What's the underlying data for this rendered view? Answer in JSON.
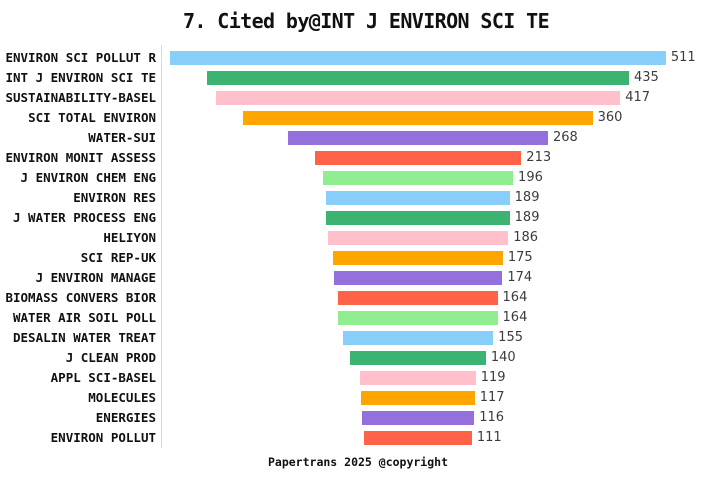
{
  "title": "7. Cited by@INT J ENVIRON SCI TE",
  "footer": "Papertrans 2025 @copyright",
  "chart_data": {
    "type": "bar",
    "subtype": "horizontal-centered-funnel",
    "title": "7. Cited by@INT J ENVIRON SCI TE",
    "xlabel": "",
    "ylabel": "",
    "xlim": [
      0,
      511
    ],
    "grid": false,
    "legend": false,
    "value_labels_shown": true,
    "categories": [
      "ENVIRON SCI POLLUT R",
      "INT J ENVIRON SCI TE",
      "SUSTAINABILITY-BASEL",
      "SCI TOTAL ENVIRON",
      "WATER-SUI",
      "ENVIRON MONIT ASSESS",
      "J ENVIRON CHEM ENG",
      "ENVIRON RES",
      "J WATER PROCESS ENG",
      "HELIYON",
      "SCI REP-UK",
      "J ENVIRON MANAGE",
      "BIOMASS CONVERS BIOR",
      "WATER AIR SOIL POLL",
      "DESALIN WATER TREAT",
      "J CLEAN PROD",
      "APPL SCI-BASEL",
      "MOLECULES",
      "ENERGIES",
      "ENVIRON POLLUT"
    ],
    "values": [
      511,
      435,
      417,
      360,
      268,
      213,
      196,
      189,
      189,
      186,
      175,
      174,
      164,
      164,
      155,
      140,
      119,
      117,
      116,
      111
    ],
    "bar_colors": [
      "#87CEFA",
      "#3CB371",
      "#FFC0CB",
      "#FFA500",
      "#9370DB",
      "#FF6347",
      "#90EE90",
      "#87CEFA",
      "#3CB371",
      "#FFC0CB",
      "#FFA500",
      "#9370DB",
      "#FF6347",
      "#90EE90",
      "#87CEFA",
      "#3CB371",
      "#FFC0CB",
      "#FFA500",
      "#9370DB",
      "#FF6347"
    ]
  },
  "colors": {
    "background": "#ffffff",
    "axis_line": "#d9d9d9",
    "title_text": "#111111",
    "category_text": "#111111",
    "value_text": "#3c3c3c"
  }
}
